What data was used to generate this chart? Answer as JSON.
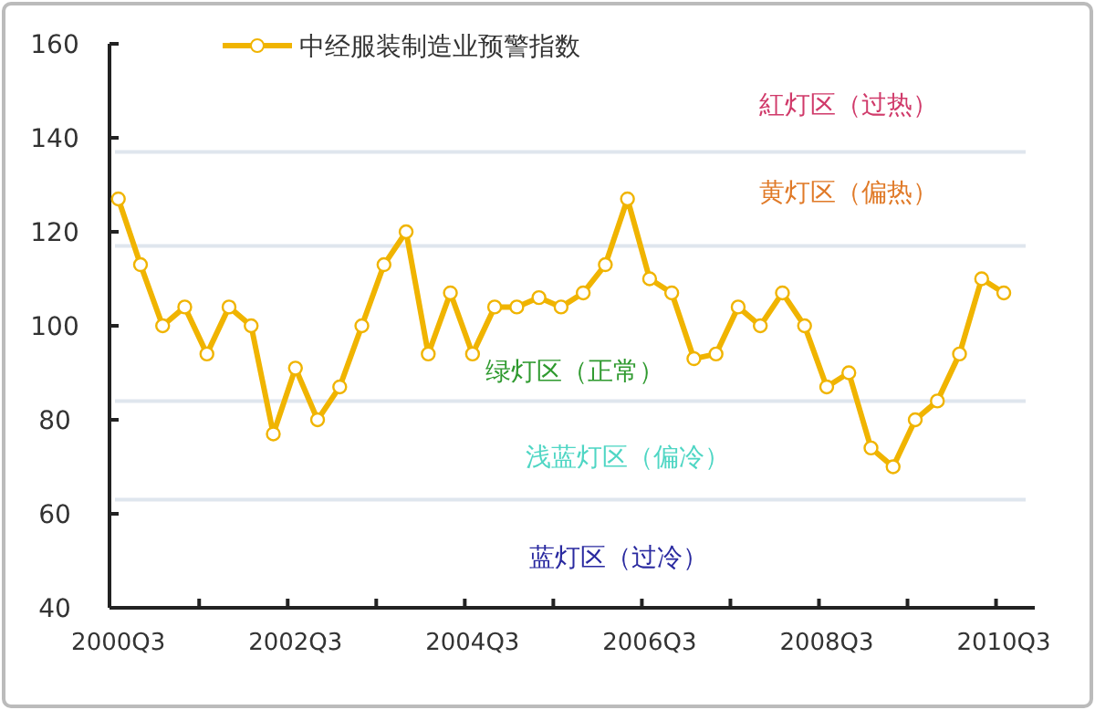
{
  "chart_data": {
    "type": "line",
    "categories": [
      "2000Q3",
      null,
      null,
      null,
      null,
      null,
      null,
      null,
      "2002Q3",
      null,
      null,
      null,
      null,
      null,
      null,
      null,
      "2004Q3",
      null,
      null,
      null,
      null,
      null,
      null,
      null,
      "2006Q3",
      null,
      null,
      null,
      null,
      null,
      null,
      null,
      "2008Q3",
      null,
      null,
      null,
      null,
      null,
      null,
      null,
      "2010Q3"
    ],
    "series": [
      {
        "name": "中经服装制造业预警指数",
        "color": "#f0b400",
        "values": [
          127,
          113,
          100,
          104,
          94,
          104,
          100,
          77,
          91,
          80,
          87,
          100,
          113,
          120,
          94,
          107,
          94,
          104,
          104,
          106,
          104,
          107,
          113,
          127,
          110,
          107,
          93,
          94,
          104,
          100,
          107,
          100,
          87,
          90,
          74,
          70,
          80,
          84,
          94,
          110,
          107
        ]
      }
    ],
    "ylim": [
      40,
      160
    ],
    "yticks": [
      40,
      60,
      80,
      100,
      120,
      140,
      160
    ],
    "marker": "circle",
    "line_style": "solid",
    "legend": "top left",
    "grid": false,
    "ref_lines": [
      {
        "axis": "y",
        "value": 137,
        "color": "#dfe6ee"
      },
      {
        "axis": "y",
        "value": 117,
        "color": "#dfe6ee"
      },
      {
        "axis": "y",
        "value": 84,
        "color": "#dfe6ee"
      },
      {
        "axis": "y",
        "value": 63,
        "color": "#dfe6ee"
      }
    ],
    "annotations": [
      "紅灯区（过热）",
      "黄灯区（偏热）",
      "绿灯区（正常）",
      "浅蓝灯区（偏冷）",
      "蓝灯区（过冷）"
    ]
  }
}
